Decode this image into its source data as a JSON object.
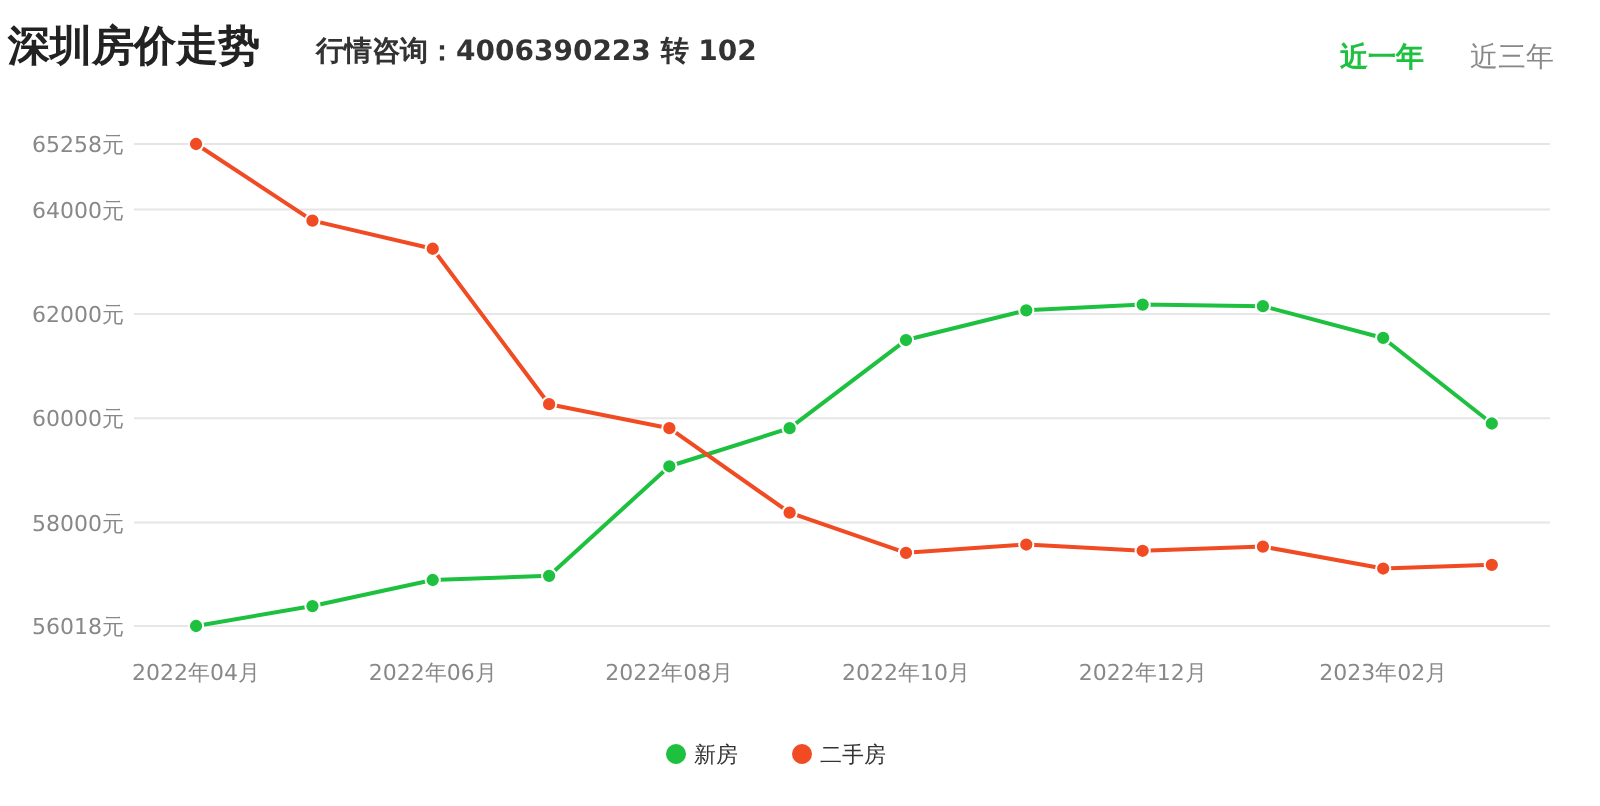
{
  "chart_data": {
    "type": "line",
    "title": "深圳房价走势",
    "subtitle": "行情咨询：4006390223 转 102",
    "annotations": [
      "近一年",
      "近三年"
    ],
    "x": [
      "2022-04",
      "2022-05",
      "2022-06",
      "2022-07",
      "2022-08",
      "2022-09",
      "2022-10",
      "2022-11",
      "2022-12",
      "2023-01",
      "2023-02",
      "2023-03"
    ],
    "series": [
      {
        "name": "新房",
        "color": "#1dc13f",
        "values": [
          56018,
          56400,
          56900,
          56980,
          59080,
          59810,
          61500,
          62070,
          62180,
          62150,
          61540,
          59900
        ]
      },
      {
        "name": "二手房",
        "color": "#f04b22",
        "values": [
          65258,
          63790,
          63250,
          60270,
          59810,
          58190,
          57420,
          57580,
          57460,
          57540,
          57120,
          57190
        ]
      }
    ],
    "xlim": [
      "2022-03-16",
      "2023-03-16"
    ],
    "xticks": [
      {
        "value": "2022-04",
        "label": "2022年04月"
      },
      {
        "value": "2022-06",
        "label": "2022年06月"
      },
      {
        "value": "2022-08",
        "label": "2022年08月"
      },
      {
        "value": "2022-10",
        "label": "2022年10月"
      },
      {
        "value": "2022-12",
        "label": "2022年12月"
      },
      {
        "value": "2023-02",
        "label": "2023年02月"
      }
    ],
    "ylim": [
      56018,
      65258
    ],
    "yticks": [
      {
        "value": 56018,
        "label": "56018元"
      },
      {
        "value": 58000,
        "label": "58000元"
      },
      {
        "value": 60000,
        "label": "60000元"
      },
      {
        "value": 62000,
        "label": "62000元"
      },
      {
        "value": 64000,
        "label": "64000元"
      },
      {
        "value": 65258,
        "label": "65258元"
      }
    ],
    "grid": "y",
    "legend": "bottom",
    "marker": "circle",
    "line_style": "solid"
  }
}
